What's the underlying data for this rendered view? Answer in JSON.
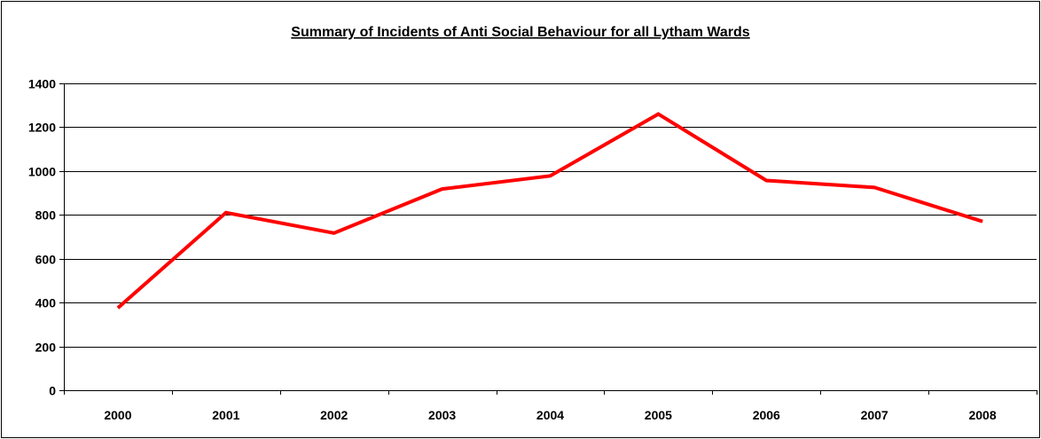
{
  "chart_data": {
    "type": "line",
    "title": "Summary of Incidents of Anti Social Behaviour for all Lytham Wards",
    "xlabel": "",
    "ylabel": "",
    "categories": [
      "2000",
      "2001",
      "2002",
      "2003",
      "2004",
      "2005",
      "2006",
      "2007",
      "2008"
    ],
    "series": [
      {
        "values": [
          375,
          810,
          717,
          918,
          978,
          1260,
          957,
          925,
          770
        ],
        "color": "#ff0000"
      }
    ],
    "ylim": [
      0,
      1400
    ],
    "yticks": [
      0,
      200,
      400,
      600,
      800,
      1000,
      1200,
      1400
    ],
    "grid": true,
    "legend": "none"
  }
}
